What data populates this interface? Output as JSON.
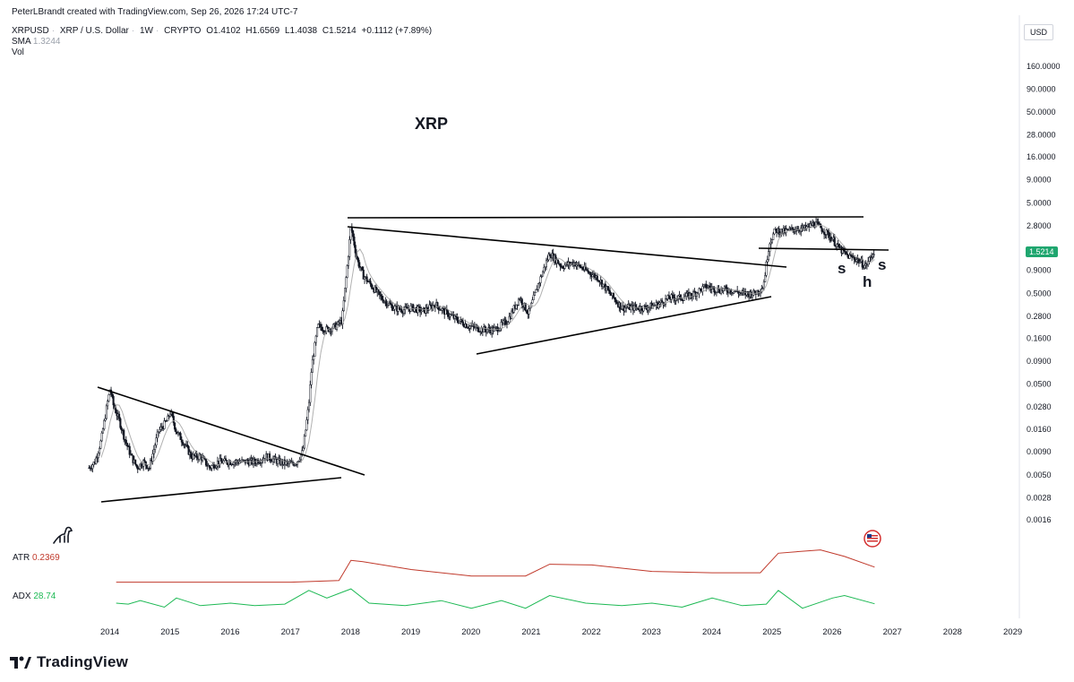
{
  "attribution": "PeterLBrandt created with TradingView.com, Sep 26, 2026 17:24 UTC-7",
  "symbol_line": {
    "symbol": "XRPUSD",
    "description": "XRP / U.S. Dollar",
    "interval": "1W",
    "market": "CRYPTO",
    "open": "O1.4102",
    "high": "H1.6569",
    "low": "L1.4038",
    "close": "C1.5214",
    "change": "+0.1112 (+7.89%)"
  },
  "sma": {
    "label": "SMA",
    "value": "1.3244"
  },
  "vol": {
    "label": "Vol"
  },
  "currency_button": "USD",
  "chart_title": "XRP",
  "pattern_labels": {
    "left_shoulder": "s",
    "head": "h",
    "right_shoulder": "s"
  },
  "atr": {
    "label": "ATR",
    "value": "0.2369"
  },
  "adx": {
    "label": "ADX",
    "value": "28.74"
  },
  "last_price_tag": "1.5214",
  "brand": "TradingView",
  "colors": {
    "candle": "#131722",
    "sma": "#9e9e9e",
    "atr": "#c0392b",
    "adx": "#1db954",
    "price_tag": "#1fa66f"
  },
  "chart_data": [
    {
      "type": "line",
      "scale": "log",
      "y_ticks": [
        "160.0000",
        "90.0000",
        "50.0000",
        "28.0000",
        "16.0000",
        "9.0000",
        "5.0000",
        "2.8000",
        "1.5214",
        "0.9000",
        "0.5000",
        "0.2800",
        "0.1600",
        "0.0900",
        "0.0500",
        "0.0280",
        "0.0160",
        "0.0090",
        "0.0050",
        "0.0028",
        "0.0016"
      ],
      "x_ticks": [
        "2014",
        "2015",
        "2016",
        "2017",
        "2018",
        "2019",
        "2020",
        "2021",
        "2022",
        "2023",
        "2024",
        "2025",
        "2026",
        "2027",
        "2028",
        "2029"
      ],
      "ylim": [
        0.0012,
        250
      ],
      "xlim": [
        2013.6,
        2029.3
      ],
      "series": [
        {
          "x": [
            2013.65,
            2013.75,
            2013.85,
            2013.95,
            2014.0,
            2014.05,
            2014.15,
            2014.25,
            2014.35,
            2014.45,
            2014.55,
            2014.65,
            2014.8,
            2014.95,
            2015.0,
            2015.1,
            2015.2,
            2015.35,
            2015.5,
            2015.65,
            2015.8,
            2016.0,
            2016.2,
            2016.4,
            2016.6,
            2016.8,
            2017.0,
            2017.1,
            2017.2,
            2017.3,
            2017.35,
            2017.45,
            2017.6,
            2017.75,
            2017.85,
            2017.95,
            2018.0,
            2018.1,
            2018.2,
            2018.35,
            2018.5,
            2018.7,
            2018.9,
            2019.0,
            2019.2,
            2019.4,
            2019.6,
            2019.8,
            2019.95,
            2020.2,
            2020.4,
            2020.6,
            2020.8,
            2020.95,
            2021.1,
            2021.3,
            2021.5,
            2021.7,
            2021.9,
            2022.1,
            2022.3,
            2022.5,
            2022.7,
            2022.9,
            2023.1,
            2023.3,
            2023.5,
            2023.7,
            2023.9,
            2024.1,
            2024.3,
            2024.5,
            2024.7,
            2024.85,
            2024.95,
            2025.05,
            2025.2,
            2025.4,
            2025.55,
            2025.7,
            2025.85,
            2026.0,
            2026.1,
            2026.25,
            2026.4,
            2026.55,
            2026.7
          ],
          "y": [
            0.006,
            0.007,
            0.012,
            0.03,
            0.045,
            0.03,
            0.02,
            0.012,
            0.008,
            0.006,
            0.007,
            0.006,
            0.015,
            0.02,
            0.025,
            0.015,
            0.012,
            0.008,
            0.008,
            0.006,
            0.007,
            0.007,
            0.007,
            0.007,
            0.008,
            0.007,
            0.0065,
            0.007,
            0.009,
            0.03,
            0.08,
            0.22,
            0.2,
            0.22,
            0.25,
            1.2,
            2.8,
            1.2,
            0.8,
            0.6,
            0.45,
            0.35,
            0.33,
            0.35,
            0.32,
            0.38,
            0.3,
            0.25,
            0.22,
            0.2,
            0.2,
            0.25,
            0.45,
            0.3,
            0.6,
            1.4,
            1.0,
            1.1,
            0.9,
            0.75,
            0.5,
            0.35,
            0.35,
            0.35,
            0.38,
            0.45,
            0.45,
            0.5,
            0.6,
            0.55,
            0.55,
            0.5,
            0.5,
            0.6,
            1.8,
            2.5,
            2.4,
            2.6,
            2.6,
            3.0,
            2.5,
            2.0,
            1.6,
            1.3,
            1.2,
            1.0,
            1.52
          ]
        }
      ],
      "annotations": [
        "XRP",
        "s",
        "h",
        "s"
      ]
    },
    {
      "type": "line",
      "title": "ATR",
      "series": [
        {
          "name": "ATR",
          "x": [
            2014.1,
            2015.0,
            2016.0,
            2017.0,
            2017.8,
            2018.0,
            2018.2,
            2019.0,
            2020.0,
            2020.9,
            2021.3,
            2022.0,
            2023.0,
            2024.0,
            2024.8,
            2025.1,
            2025.5,
            2025.8,
            2026.2,
            2026.7
          ],
          "y": [
            0.005,
            0.005,
            0.005,
            0.005,
            0.03,
            0.34,
            0.32,
            0.2,
            0.1,
            0.1,
            0.28,
            0.27,
            0.17,
            0.15,
            0.15,
            0.45,
            0.48,
            0.5,
            0.4,
            0.2369
          ]
        }
      ]
    },
    {
      "type": "line",
      "title": "ADX",
      "series": [
        {
          "name": "ADX",
          "x": [
            2014.1,
            2014.3,
            2014.5,
            2014.9,
            2015.1,
            2015.5,
            2016.0,
            2016.4,
            2016.9,
            2017.3,
            2017.6,
            2018.0,
            2018.3,
            2018.9,
            2019.5,
            2020.0,
            2020.5,
            2020.9,
            2021.3,
            2021.9,
            2022.5,
            2023.0,
            2023.5,
            2024.0,
            2024.5,
            2024.9,
            2025.1,
            2025.5,
            2026.0,
            2026.2,
            2026.7
          ],
          "y": [
            30,
            28,
            35,
            22,
            40,
            25,
            30,
            25,
            28,
            55,
            40,
            58,
            30,
            25,
            35,
            20,
            35,
            20,
            45,
            30,
            25,
            30,
            22,
            40,
            25,
            28,
            55,
            20,
            40,
            45,
            28.74
          ]
        }
      ]
    }
  ]
}
